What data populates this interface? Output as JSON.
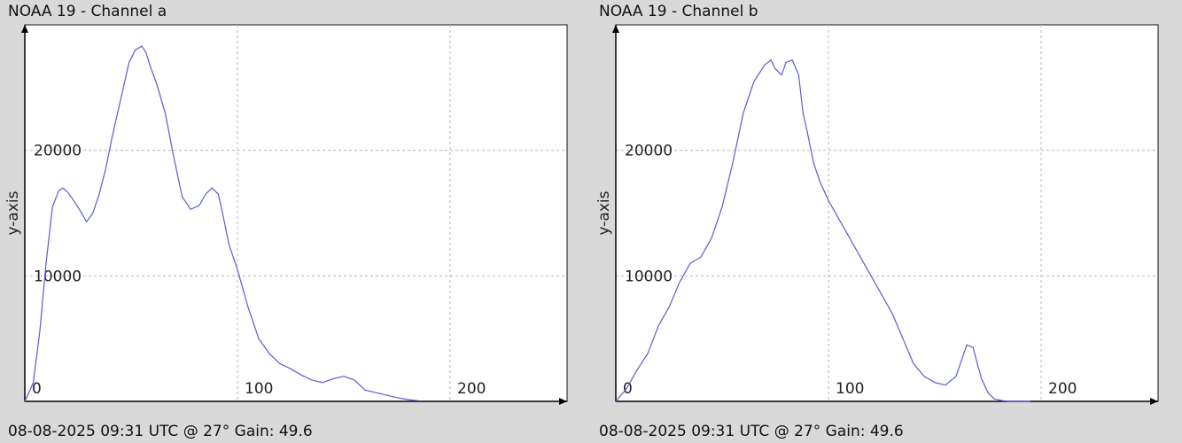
{
  "chart_data": [
    {
      "type": "line",
      "title": "NOAA 19 - Channel a",
      "footer": "08-08-2025 09:31 UTC @ 27° Gain: 49.6",
      "xlabel": "",
      "ylabel": "y-axis",
      "xlim": [
        0,
        255
      ],
      "ylim": [
        0,
        30000
      ],
      "grid": true,
      "x_ticks": [
        0,
        100,
        200
      ],
      "y_ticks": [
        10000,
        20000
      ],
      "line_color": "#5b5bd6",
      "series": [
        {
          "x": [
            0,
            4,
            7,
            10,
            13,
            16,
            18,
            20,
            23,
            26,
            29,
            32,
            35,
            38,
            41,
            45,
            49,
            52,
            55,
            57,
            59,
            62,
            66,
            70,
            74,
            78,
            82,
            85,
            88,
            91,
            93,
            96,
            100,
            105,
            110,
            115,
            120,
            125,
            130,
            135,
            140,
            145,
            150,
            155,
            160,
            165,
            170,
            175,
            180,
            185
          ],
          "y": [
            0,
            1500,
            5500,
            11000,
            15500,
            16800,
            17000,
            16700,
            16000,
            15200,
            14300,
            15000,
            16500,
            18500,
            21000,
            24000,
            27000,
            28000,
            28300,
            27800,
            26700,
            25300,
            23000,
            19500,
            16300,
            15300,
            15600,
            16500,
            17000,
            16500,
            15000,
            12500,
            10500,
            7500,
            5000,
            3800,
            3000,
            2600,
            2100,
            1700,
            1500,
            1800,
            2000,
            1700,
            900,
            700,
            500,
            300,
            150,
            50
          ]
        }
      ]
    },
    {
      "type": "line",
      "title": "NOAA 19 - Channel b",
      "footer": "08-08-2025 09:31 UTC @ 27° Gain: 49.6",
      "xlabel": "",
      "ylabel": "y-axis",
      "xlim": [
        0,
        255
      ],
      "ylim": [
        0,
        30000
      ],
      "grid": true,
      "x_ticks": [
        0,
        100,
        200
      ],
      "y_ticks": [
        10000,
        20000
      ],
      "line_color": "#5b5bd6",
      "series": [
        {
          "x": [
            0,
            5,
            10,
            15,
            20,
            25,
            30,
            35,
            40,
            45,
            50,
            55,
            60,
            65,
            70,
            73,
            75,
            78,
            80,
            83,
            86,
            88,
            90,
            93,
            96,
            100,
            105,
            110,
            115,
            120,
            125,
            130,
            135,
            140,
            145,
            150,
            155,
            160,
            165,
            168,
            170,
            172,
            175,
            178,
            182,
            186,
            190,
            195
          ],
          "y": [
            0,
            1000,
            2500,
            3800,
            6000,
            7500,
            9500,
            11000,
            11500,
            13000,
            15500,
            19000,
            23000,
            25500,
            26800,
            27200,
            26500,
            26000,
            27000,
            27200,
            26000,
            23000,
            21500,
            19000,
            17500,
            16000,
            14500,
            13000,
            11500,
            10000,
            8500,
            7000,
            5000,
            3000,
            2000,
            1500,
            1300,
            2000,
            4500,
            4300,
            3000,
            1800,
            700,
            200,
            50,
            0,
            0,
            0
          ]
        }
      ]
    }
  ]
}
